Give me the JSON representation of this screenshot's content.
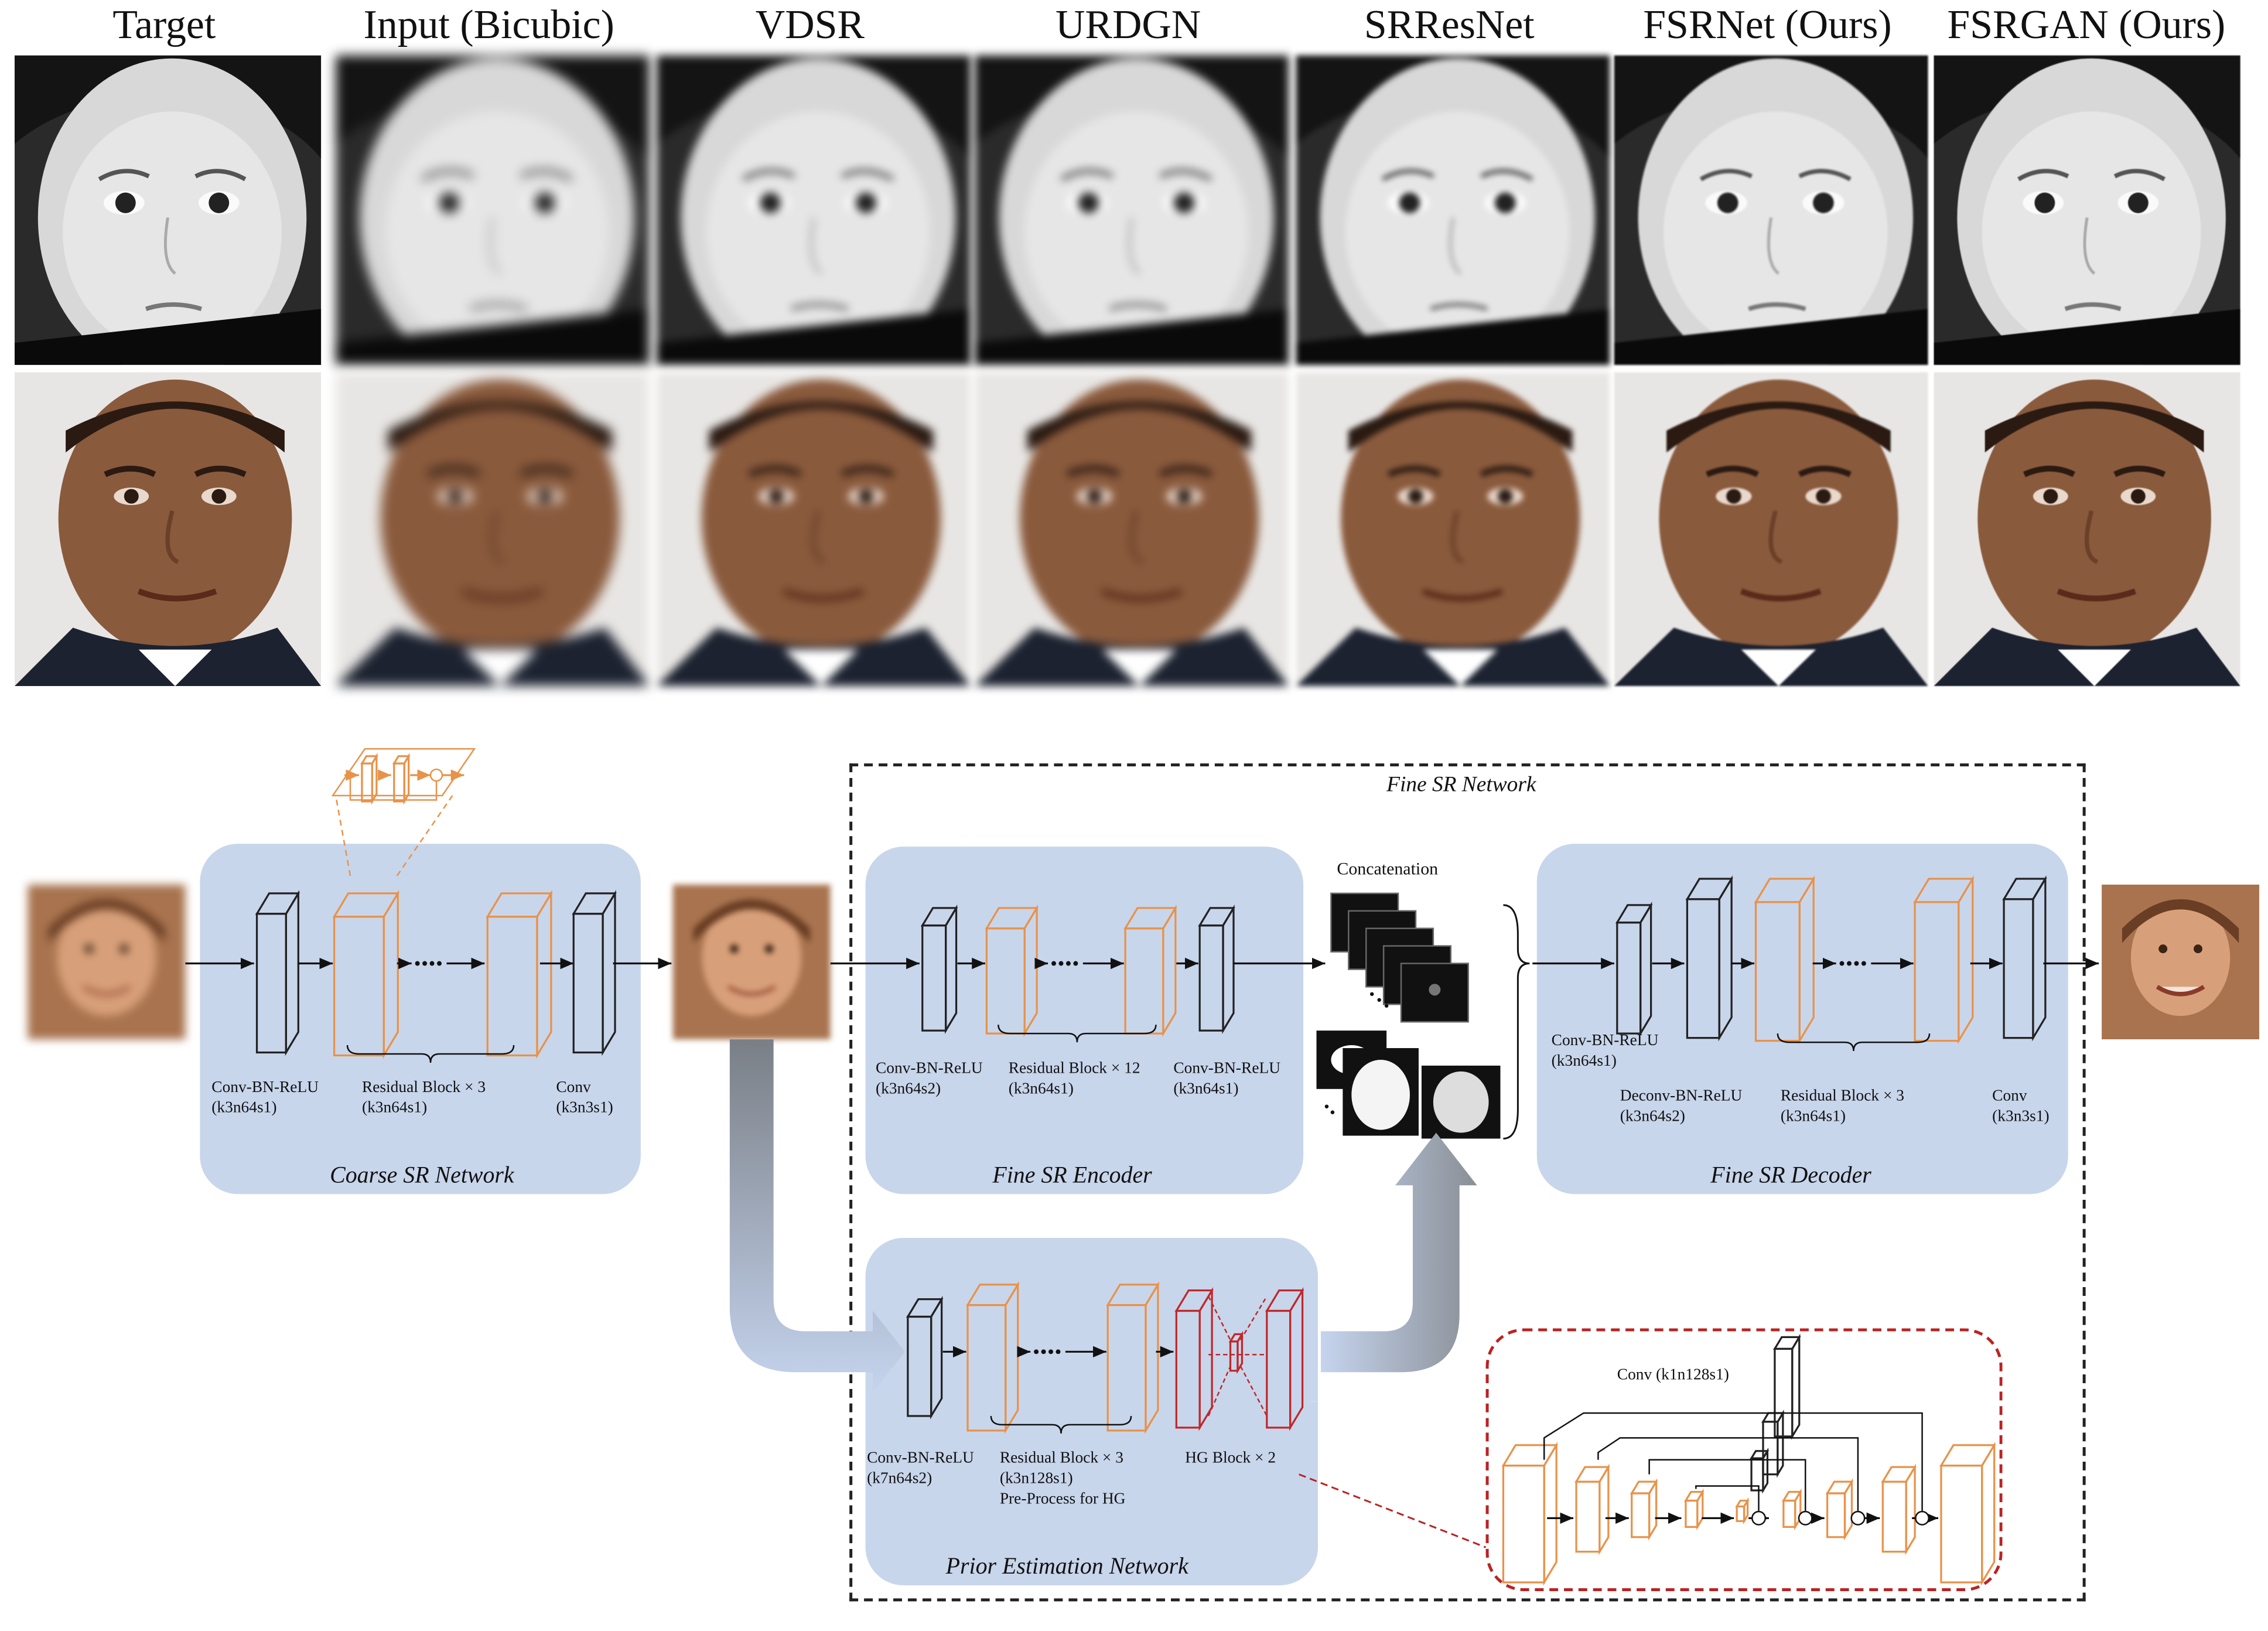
{
  "columns": [
    "Target",
    "Input (Bicubic)",
    "VDSR",
    "URDGN",
    "SRResNet",
    "FSRNet (Ours)",
    "FSRGAN (Ours)"
  ],
  "rows": [
    {
      "subject": "child-face",
      "tone": "grayscale"
    },
    {
      "subject": "adult-face",
      "tone": "color"
    }
  ],
  "diagram": {
    "coarse": {
      "title": "Coarse SR Network",
      "labels": [
        "Conv-BN-ReLU",
        "(k3n64s1)",
        "Residual Block × 3",
        "(k3n64s1)",
        "Conv",
        "(k3n3s1)"
      ]
    },
    "fine_network_title": "Fine SR Network",
    "encoder": {
      "title": "Fine SR Encoder",
      "labels": [
        "Conv-BN-ReLU",
        "(k3n64s2)",
        "Residual Block × 12",
        "(k3n64s1)",
        "Conv-BN-ReLU",
        "(k3n64s1)"
      ]
    },
    "concat_label": "Concatenation",
    "decoder": {
      "title": "Fine SR Decoder",
      "labels": [
        "Conv-BN-ReLU",
        "(k3n64s1)",
        "Deconv-BN-ReLU",
        "(k3n64s2)",
        "Residual Block × 3",
        "(k3n64s1)",
        "Conv",
        "(k3n3s1)"
      ]
    },
    "prior": {
      "title": "Prior Estimation Network",
      "labels": [
        "Conv-BN-ReLU",
        "(k7n64s2)",
        "Residual Block × 3",
        "(k3n128s1)",
        "Pre-Process for HG",
        "HG Block × 2"
      ]
    },
    "hg_detail_label": "Conv (k1n128s1)"
  },
  "colors": {
    "panel": "#c8d6ec",
    "residual": "#e8924a",
    "conv": "#222222",
    "hg": "#c0282a",
    "arrow_gradient_start": "#c5d4ee",
    "arrow_gradient_end": "#7a7f86"
  }
}
